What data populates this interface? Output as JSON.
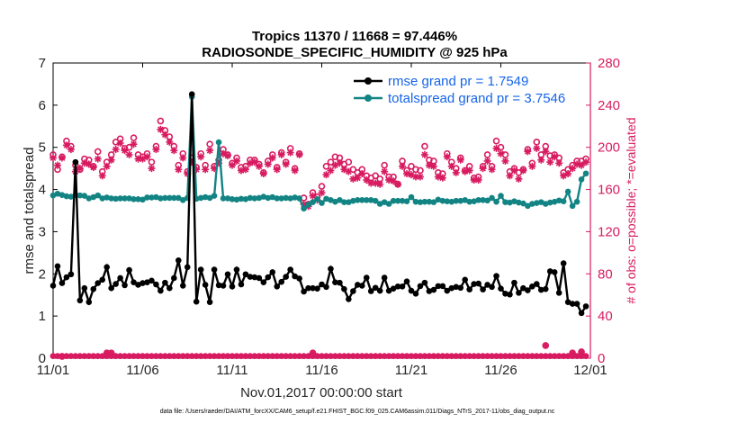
{
  "chart_data": {
    "type": "line",
    "title": "Tropics 11370 / 11668 = 97.446%",
    "subtitle": "RADIOSONDE_SPECIFIC_HUMIDITY @ 925 hPa",
    "xlabel": "Nov.01,2017 00:00:00 start",
    "ylabel_left": "rmse and totalspread",
    "ylabel_right": "# of obs: o=possible; *=evaluated",
    "footer": "data file: /Users/raeder/DAI/ATM_forcXX/CAM6_setup/f.e21.FHIST_BGC.f09_025.CAM6assim.011/Diags_NTrS_2017-11/obs_diag_output.nc",
    "xlim": [
      0,
      30
    ],
    "ylim_left": [
      0,
      7
    ],
    "ylim_right": [
      0,
      280
    ],
    "x_ticks": [
      0,
      5,
      10,
      15,
      20,
      25,
      30
    ],
    "x_tick_labels": [
      "11/01",
      "11/06",
      "11/11",
      "11/16",
      "11/21",
      "11/26",
      "12/01"
    ],
    "y_ticks_left": [
      0,
      1,
      2,
      3,
      4,
      5,
      6,
      7
    ],
    "y_tick_labels_left": [
      "0",
      "1",
      "2",
      "3",
      "4",
      "5",
      "6",
      "7"
    ],
    "y_ticks_right": [
      0,
      40,
      80,
      120,
      160,
      200,
      240,
      280
    ],
    "y_tick_labels_right": [
      "0",
      "40",
      "80",
      "120",
      "160",
      "200",
      "240",
      "280"
    ],
    "legend_position": "top-right",
    "x": [
      0.0,
      0.25,
      0.5,
      0.75,
      1.0,
      1.25,
      1.5,
      1.75,
      2.0,
      2.25,
      2.5,
      2.75,
      3.0,
      3.25,
      3.5,
      3.75,
      4.0,
      4.25,
      4.5,
      4.75,
      5.0,
      5.25,
      5.5,
      5.75,
      6.0,
      6.25,
      6.5,
      6.75,
      7.0,
      7.25,
      7.5,
      7.75,
      8.0,
      8.25,
      8.5,
      8.75,
      9.0,
      9.25,
      9.5,
      9.75,
      10.0,
      10.25,
      10.5,
      10.75,
      11.0,
      11.25,
      11.5,
      11.75,
      12.0,
      12.25,
      12.5,
      12.75,
      13.0,
      13.25,
      13.5,
      13.75,
      14.0,
      14.25,
      14.5,
      14.75,
      15.0,
      15.25,
      15.5,
      15.75,
      16.0,
      16.25,
      16.5,
      16.75,
      17.0,
      17.25,
      17.5,
      17.75,
      18.0,
      18.25,
      18.5,
      18.75,
      19.0,
      19.25,
      19.5,
      19.75,
      20.0,
      20.25,
      20.5,
      20.75,
      21.0,
      21.25,
      21.5,
      21.75,
      22.0,
      22.25,
      22.5,
      22.75,
      23.0,
      23.25,
      23.5,
      23.75,
      24.0,
      24.25,
      24.5,
      24.75,
      25.0,
      25.25,
      25.5,
      25.75,
      26.0,
      26.25,
      26.5,
      26.75,
      27.0,
      27.25,
      27.5,
      27.75,
      28.0,
      28.25,
      28.5,
      28.75,
      29.0,
      29.25,
      29.5,
      29.75
    ],
    "series": [
      {
        "name": "rmse grand pr = 1.7549",
        "color": "#000000",
        "axis": "left",
        "values": [
          1.72,
          2.18,
          1.78,
          1.92,
          1.99,
          4.65,
          1.37,
          1.66,
          1.33,
          1.64,
          1.78,
          1.86,
          2.16,
          1.66,
          1.76,
          1.9,
          1.73,
          2.09,
          1.8,
          1.74,
          1.78,
          1.8,
          1.84,
          1.75,
          1.6,
          1.79,
          1.66,
          1.9,
          2.32,
          1.72,
          2.16,
          6.26,
          1.34,
          2.1,
          1.74,
          1.33,
          2.1,
          1.73,
          1.72,
          1.99,
          1.7,
          2.1,
          1.75,
          1.99,
          1.93,
          1.92,
          1.9,
          1.8,
          1.92,
          2.04,
          1.7,
          1.81,
          1.93,
          2.1,
          1.94,
          1.89,
          1.58,
          1.66,
          1.66,
          1.65,
          1.75,
          1.69,
          2.12,
          1.8,
          1.79,
          1.64,
          1.4,
          1.59,
          1.74,
          1.72,
          1.91,
          1.59,
          1.67,
          1.6,
          1.91,
          1.6,
          1.65,
          1.7,
          1.7,
          1.82,
          1.6,
          1.53,
          1.71,
          1.79,
          1.59,
          1.62,
          1.71,
          1.71,
          1.6,
          1.66,
          1.69,
          1.67,
          1.86,
          1.63,
          1.76,
          1.77,
          1.63,
          1.74,
          1.69,
          1.95,
          1.65,
          1.53,
          1.51,
          1.79,
          1.55,
          1.66,
          1.61,
          1.7,
          1.76,
          1.62,
          1.64,
          2.06,
          2.04,
          1.55,
          2.25,
          1.33,
          1.29,
          1.29,
          1.07,
          1.23
        ]
      },
      {
        "name": "totalspread grand pr = 3.7546",
        "color": "#138484",
        "axis": "left",
        "values": [
          3.86,
          3.9,
          3.87,
          3.84,
          3.83,
          3.87,
          3.86,
          3.85,
          3.79,
          3.82,
          3.86,
          3.79,
          3.81,
          3.79,
          3.78,
          3.79,
          3.79,
          3.79,
          3.77,
          3.77,
          3.76,
          3.81,
          3.81,
          3.82,
          3.79,
          3.8,
          3.8,
          3.8,
          3.8,
          3.75,
          3.8,
          6.2,
          3.78,
          3.8,
          3.82,
          3.8,
          3.85,
          5.12,
          3.79,
          3.79,
          3.77,
          3.76,
          3.78,
          3.77,
          3.8,
          3.79,
          3.8,
          3.83,
          3.8,
          3.82,
          3.79,
          3.79,
          3.8,
          3.79,
          3.81,
          3.79,
          3.55,
          3.64,
          3.7,
          3.77,
          3.68,
          3.78,
          3.75,
          3.71,
          3.75,
          3.7,
          3.7,
          3.73,
          3.75,
          3.75,
          3.75,
          3.75,
          3.73,
          3.66,
          3.7,
          3.66,
          3.73,
          3.73,
          3.73,
          3.72,
          3.82,
          3.71,
          3.7,
          3.71,
          3.71,
          3.7,
          3.76,
          3.73,
          3.72,
          3.71,
          3.73,
          3.73,
          3.75,
          3.71,
          3.72,
          3.75,
          3.75,
          3.74,
          3.8,
          3.71,
          3.85,
          3.7,
          3.69,
          3.72,
          3.69,
          3.67,
          3.61,
          3.66,
          3.68,
          3.7,
          3.66,
          3.69,
          3.71,
          3.74,
          3.72,
          3.95,
          3.61,
          3.71,
          4.24,
          4.38
        ]
      },
      {
        "name": "possible obs",
        "color": "#d81b60",
        "axis": "right",
        "marker": "o",
        "values": [
          193,
          179,
          191,
          206,
          201,
          183,
          179,
          189,
          188,
          182,
          196,
          177,
          186,
          193,
          205,
          208,
          199,
          200,
          209,
          193,
          191,
          194,
          186,
          201,
          225,
          216,
          210,
          201,
          183,
          194,
          177,
          190,
          181,
          194,
          183,
          203,
          182,
          188,
          198,
          193,
          185,
          190,
          181,
          182,
          188,
          188,
          184,
          176,
          187,
          193,
          181,
          195,
          186,
          199,
          180,
          194,
          152,
          146,
          157,
          153,
          163,
          182,
          186,
          191,
          190,
          184,
          186,
          179,
          176,
          179,
          173,
          171,
          173,
          170,
          183,
          172,
          172,
          165,
          187,
          178,
          182,
          179,
          178,
          201,
          188,
          187,
          176,
          175,
          194,
          186,
          180,
          190,
          178,
          182,
          171,
          172,
          182,
          193,
          182,
          206,
          200,
          193,
          177,
          180,
          176,
          179,
          198,
          185,
          205,
          193,
          201,
          192,
          193,
          190,
          176,
          179,
          183,
          187,
          187,
          189
        ]
      },
      {
        "name": "evaluated obs",
        "color": "#d81b60",
        "axis": "right",
        "marker": "*",
        "values": [
          190,
          183,
          190,
          202,
          198,
          177,
          180,
          185,
          184,
          181,
          189,
          173,
          182,
          188,
          198,
          204,
          197,
          193,
          203,
          189,
          189,
          191,
          180,
          198,
          217,
          212,
          205,
          197,
          179,
          190,
          175,
          186,
          179,
          191,
          179,
          197,
          180,
          185,
          194,
          192,
          183,
          187,
          178,
          179,
          185,
          186,
          182,
          175,
          184,
          190,
          179,
          193,
          184,
          195,
          178,
          193,
          146,
          144,
          154,
          150,
          157,
          174,
          178,
          183,
          185,
          179,
          177,
          170,
          171,
          175,
          169,
          166,
          166,
          165,
          177,
          169,
          168,
          165,
          182,
          175,
          174,
          172,
          172,
          193,
          183,
          182,
          172,
          171,
          191,
          182,
          176,
          188,
          177,
          178,
          169,
          169,
          180,
          187,
          179,
          199,
          194,
          187,
          173,
          178,
          170,
          178,
          196,
          182,
          199,
          188,
          196,
          186,
          191,
          185,
          173,
          175,
          180,
          184,
          183,
          186
        ]
      }
    ],
    "bottom_markers": {
      "possible_x": [
        0.5,
        3.0,
        3.25,
        14.5,
        27.5,
        29.0,
        29.5
      ],
      "possible_values": [
        1.7,
        5,
        5,
        5,
        12,
        5,
        6
      ],
      "evaluated_values": [
        1.7,
        5,
        5,
        5,
        12,
        5,
        6
      ]
    }
  }
}
